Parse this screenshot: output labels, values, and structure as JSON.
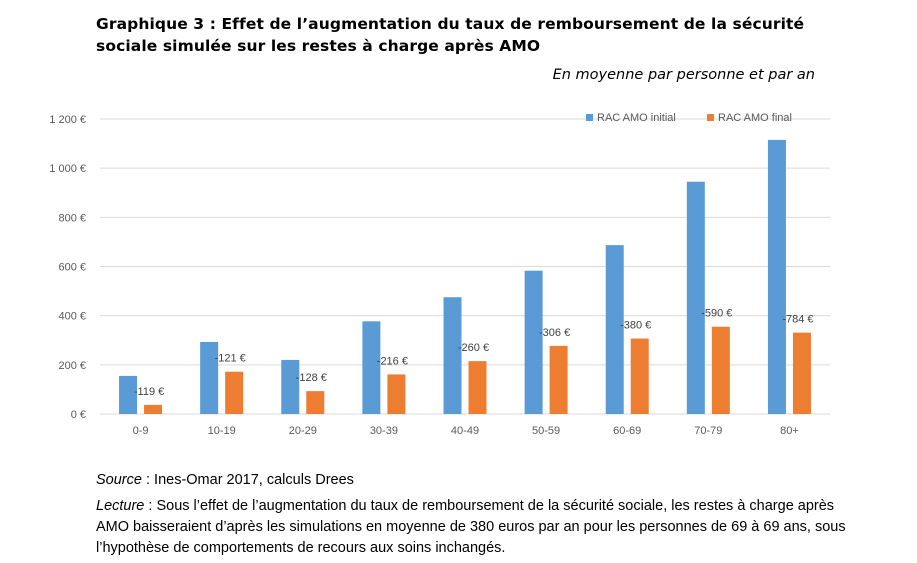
{
  "title": "Graphique 3 : Effet de l’augmentation du taux de remboursement de la sécurité sociale simulée sur les restes à charge après AMO",
  "subtitle": "En moyenne par personne et par an",
  "source": {
    "label": "Source",
    "text": " : Ines-Omar 2017, calculs Drees"
  },
  "lecture": {
    "label": "Lecture",
    "text": " : Sous l’effet de l’augmentation du taux de remboursement de la sécurité sociale, les restes à charge après AMO baisseraient d’après les simulations en moyenne de 380 euros par an pour les personnes de 69 à 69 ans, sous l’hypothèse de comportements de recours aux soins inchangés."
  },
  "colors": {
    "initial": "#5b9bd5",
    "final": "#ed7d31",
    "grid": "#d9d9d9",
    "axis_text": "#595959"
  },
  "chart_data": {
    "type": "bar",
    "categories": [
      "0-9",
      "10-19",
      "20-29",
      "30-39",
      "40-49",
      "50-59",
      "60-69",
      "70-79",
      "80+"
    ],
    "series": [
      {
        "name": "RAC AMO initial",
        "values": [
          155,
          293,
          220,
          377,
          475,
          583,
          687,
          945,
          1115
        ]
      },
      {
        "name": "RAC AMO final",
        "values": [
          37,
          172,
          93,
          161,
          215,
          277,
          307,
          355,
          331
        ]
      }
    ],
    "annotations": [
      "-119 €",
      "-121 €",
      "-128 €",
      "-216 €",
      "-260 €",
      "-306 €",
      "-380 €",
      "-590 €",
      "-784 €"
    ],
    "ylim": [
      0,
      1200
    ],
    "yticks": [
      0,
      200,
      400,
      600,
      800,
      1000,
      1200
    ],
    "ytick_labels": [
      "0 €",
      "200 €",
      "400 €",
      "600 €",
      "800 €",
      "1 000 €",
      "1 200 €"
    ],
    "legend_position": "top-right",
    "grid": true
  }
}
